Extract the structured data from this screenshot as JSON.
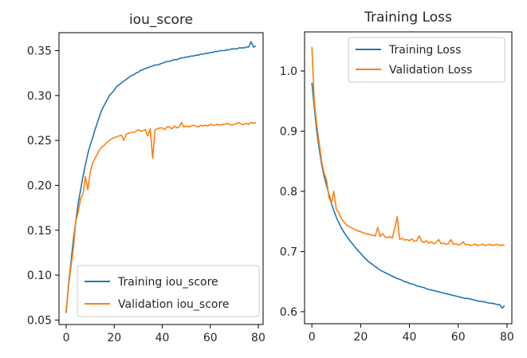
{
  "chart_data": [
    {
      "type": "line",
      "title": "iou_score",
      "xlabel": "",
      "ylabel": "",
      "xlim": [
        -3,
        82
      ],
      "ylim": [
        0.045,
        0.37
      ],
      "xticks": [
        0,
        20,
        40,
        60,
        80
      ],
      "yticks": [
        0.05,
        0.1,
        0.15,
        0.2,
        0.25,
        0.3,
        0.35
      ],
      "ytick_labels": [
        "0.05",
        "0.10",
        "0.15",
        "0.20",
        "0.25",
        "0.30",
        "0.35"
      ],
      "xtick_labels": [
        "0",
        "20",
        "40",
        "60",
        "80"
      ],
      "legend_position": "bottom-right",
      "grid": false,
      "series": [
        {
          "name": "Training iou_score",
          "color": "#1f77b4",
          "x": [
            0,
            1,
            2,
            3,
            4,
            5,
            6,
            7,
            8,
            9,
            10,
            11,
            12,
            13,
            14,
            15,
            16,
            17,
            18,
            19,
            20,
            21,
            22,
            23,
            24,
            25,
            26,
            27,
            28,
            29,
            30,
            31,
            32,
            33,
            34,
            35,
            36,
            37,
            38,
            39,
            40,
            41,
            42,
            43,
            44,
            45,
            46,
            47,
            48,
            49,
            50,
            51,
            52,
            53,
            54,
            55,
            56,
            57,
            58,
            59,
            60,
            61,
            62,
            63,
            64,
            65,
            66,
            67,
            68,
            69,
            70,
            71,
            72,
            73,
            74,
            75,
            76,
            77,
            78,
            79
          ],
          "y": [
            0.058,
            0.09,
            0.115,
            0.14,
            0.16,
            0.18,
            0.195,
            0.21,
            0.223,
            0.235,
            0.245,
            0.253,
            0.262,
            0.27,
            0.278,
            0.285,
            0.29,
            0.295,
            0.3,
            0.303,
            0.306,
            0.31,
            0.312,
            0.314,
            0.316,
            0.318,
            0.32,
            0.322,
            0.323,
            0.325,
            0.326,
            0.328,
            0.329,
            0.33,
            0.331,
            0.332,
            0.333,
            0.334,
            0.334,
            0.335,
            0.336,
            0.337,
            0.338,
            0.338,
            0.339,
            0.34,
            0.34,
            0.341,
            0.342,
            0.342,
            0.343,
            0.343,
            0.344,
            0.344,
            0.345,
            0.345,
            0.346,
            0.346,
            0.347,
            0.347,
            0.348,
            0.348,
            0.349,
            0.349,
            0.35,
            0.35,
            0.35,
            0.351,
            0.351,
            0.352,
            0.352,
            0.352,
            0.353,
            0.353,
            0.353,
            0.354,
            0.354,
            0.36,
            0.354,
            0.355
          ]
        },
        {
          "name": "Validation iou_score",
          "color": "#ff7f0e",
          "x": [
            0,
            1,
            2,
            3,
            4,
            5,
            6,
            7,
            8,
            9,
            10,
            11,
            12,
            13,
            14,
            15,
            16,
            17,
            18,
            19,
            20,
            21,
            22,
            23,
            24,
            25,
            26,
            27,
            28,
            29,
            30,
            31,
            32,
            33,
            34,
            35,
            36,
            37,
            38,
            39,
            40,
            41,
            42,
            43,
            44,
            45,
            46,
            47,
            48,
            49,
            50,
            51,
            52,
            53,
            54,
            55,
            56,
            57,
            58,
            59,
            60,
            61,
            62,
            63,
            64,
            65,
            66,
            67,
            68,
            69,
            70,
            71,
            72,
            73,
            74,
            75,
            76,
            77,
            78,
            79
          ],
          "y": [
            0.06,
            0.088,
            0.11,
            0.13,
            0.16,
            0.17,
            0.185,
            0.19,
            0.21,
            0.195,
            0.215,
            0.225,
            0.23,
            0.235,
            0.24,
            0.243,
            0.245,
            0.248,
            0.25,
            0.252,
            0.253,
            0.254,
            0.255,
            0.256,
            0.25,
            0.257,
            0.258,
            0.259,
            0.259,
            0.26,
            0.262,
            0.26,
            0.261,
            0.262,
            0.255,
            0.263,
            0.23,
            0.262,
            0.263,
            0.264,
            0.264,
            0.262,
            0.265,
            0.265,
            0.263,
            0.266,
            0.264,
            0.265,
            0.27,
            0.265,
            0.266,
            0.265,
            0.266,
            0.267,
            0.266,
            0.265,
            0.267,
            0.266,
            0.267,
            0.266,
            0.268,
            0.267,
            0.267,
            0.268,
            0.267,
            0.268,
            0.268,
            0.269,
            0.268,
            0.267,
            0.268,
            0.269,
            0.27,
            0.268,
            0.268,
            0.269,
            0.268,
            0.27,
            0.269,
            0.27
          ]
        }
      ]
    },
    {
      "type": "line",
      "title": "Training Loss",
      "xlabel": "",
      "ylabel": "",
      "xlim": [
        -3,
        82
      ],
      "ylim": [
        0.58,
        1.065
      ],
      "xticks": [
        0,
        20,
        40,
        60,
        80
      ],
      "yticks": [
        0.6,
        0.7,
        0.8,
        0.9,
        1.0
      ],
      "ytick_labels": [
        "0.6",
        "0.7",
        "0.8",
        "0.9",
        "1.0"
      ],
      "xtick_labels": [
        "0",
        "20",
        "40",
        "60",
        "80"
      ],
      "legend_position": "top-right",
      "grid": false,
      "series": [
        {
          "name": "Training Loss",
          "color": "#1f77b4",
          "x": [
            0,
            1,
            2,
            3,
            4,
            5,
            6,
            7,
            8,
            9,
            10,
            11,
            12,
            13,
            14,
            15,
            16,
            17,
            18,
            19,
            20,
            21,
            22,
            23,
            24,
            25,
            26,
            27,
            28,
            29,
            30,
            31,
            32,
            33,
            34,
            35,
            36,
            37,
            38,
            39,
            40,
            41,
            42,
            43,
            44,
            45,
            46,
            47,
            48,
            49,
            50,
            51,
            52,
            53,
            54,
            55,
            56,
            57,
            58,
            59,
            60,
            61,
            62,
            63,
            64,
            65,
            66,
            67,
            68,
            69,
            70,
            71,
            72,
            73,
            74,
            75,
            76,
            77,
            78,
            79
          ],
          "y": [
            0.98,
            0.94,
            0.9,
            0.87,
            0.845,
            0.825,
            0.81,
            0.795,
            0.78,
            0.768,
            0.757,
            0.748,
            0.74,
            0.733,
            0.727,
            0.721,
            0.716,
            0.711,
            0.706,
            0.701,
            0.697,
            0.692,
            0.688,
            0.684,
            0.681,
            0.678,
            0.675,
            0.672,
            0.669,
            0.667,
            0.665,
            0.663,
            0.661,
            0.659,
            0.657,
            0.655,
            0.654,
            0.652,
            0.65,
            0.649,
            0.647,
            0.646,
            0.645,
            0.643,
            0.642,
            0.641,
            0.64,
            0.638,
            0.637,
            0.636,
            0.635,
            0.634,
            0.633,
            0.632,
            0.631,
            0.63,
            0.629,
            0.628,
            0.627,
            0.626,
            0.625,
            0.624,
            0.623,
            0.622,
            0.622,
            0.621,
            0.62,
            0.619,
            0.618,
            0.617,
            0.617,
            0.616,
            0.615,
            0.614,
            0.614,
            0.613,
            0.612,
            0.612,
            0.606,
            0.61
          ]
        },
        {
          "name": "Validation Loss",
          "color": "#ff7f0e",
          "x": [
            0,
            1,
            2,
            3,
            4,
            5,
            6,
            7,
            8,
            9,
            10,
            11,
            12,
            13,
            14,
            15,
            16,
            17,
            18,
            19,
            20,
            21,
            22,
            23,
            24,
            25,
            26,
            27,
            28,
            29,
            30,
            31,
            32,
            33,
            34,
            35,
            36,
            37,
            38,
            39,
            40,
            41,
            42,
            43,
            44,
            45,
            46,
            47,
            48,
            49,
            50,
            51,
            52,
            53,
            54,
            55,
            56,
            57,
            58,
            59,
            60,
            61,
            62,
            63,
            64,
            65,
            66,
            67,
            68,
            69,
            70,
            71,
            72,
            73,
            74,
            75,
            76,
            77,
            78,
            79
          ],
          "y": [
            1.04,
            0.95,
            0.91,
            0.88,
            0.85,
            0.83,
            0.82,
            0.79,
            0.78,
            0.8,
            0.77,
            0.765,
            0.755,
            0.75,
            0.745,
            0.742,
            0.74,
            0.738,
            0.736,
            0.734,
            0.733,
            0.731,
            0.73,
            0.729,
            0.728,
            0.727,
            0.726,
            0.74,
            0.725,
            0.73,
            0.724,
            0.723,
            0.725,
            0.722,
            0.74,
            0.758,
            0.72,
            0.722,
            0.719,
            0.72,
            0.718,
            0.721,
            0.717,
            0.718,
            0.726,
            0.717,
            0.715,
            0.718,
            0.714,
            0.716,
            0.713,
            0.715,
            0.72,
            0.713,
            0.714,
            0.712,
            0.713,
            0.72,
            0.712,
            0.713,
            0.711,
            0.712,
            0.716,
            0.711,
            0.712,
            0.71,
            0.711,
            0.712,
            0.71,
            0.711,
            0.712,
            0.71,
            0.711,
            0.712,
            0.71,
            0.711,
            0.712,
            0.71,
            0.711,
            0.71
          ]
        }
      ]
    }
  ]
}
